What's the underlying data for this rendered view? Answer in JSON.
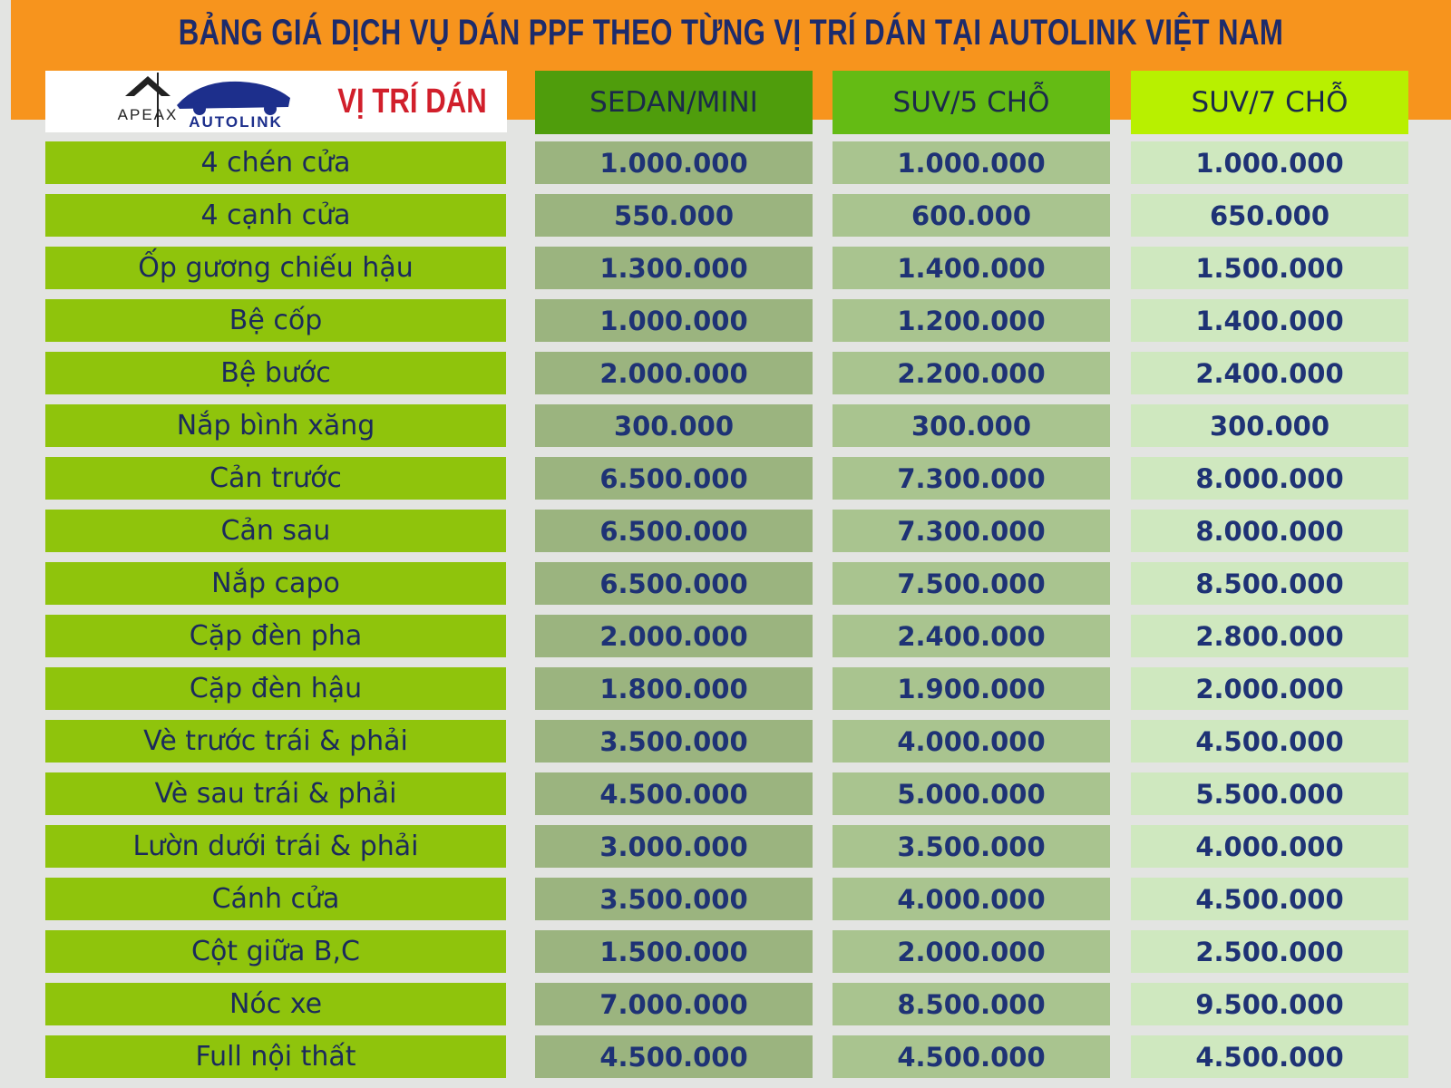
{
  "header": {
    "title": "BẢNG GIÁ DỊCH VỤ DÁN PPF THEO TỪNG VỊ TRÍ DÁN TẠI AUTOLINK VIỆT NAM"
  },
  "logo": {
    "brand1": "APEAX",
    "brand2": "AUTOLINK"
  },
  "table": {
    "columns": [
      "VỊ TRÍ DÁN",
      "SEDAN/MINI",
      "SUV/5 CHỖ",
      "SUV/7 CHỖ"
    ],
    "rows": [
      [
        "4 chén cửa",
        "1.000.000",
        "1.000.000",
        "1.000.000"
      ],
      [
        "4 cạnh cửa",
        "550.000",
        "600.000",
        "650.000"
      ],
      [
        "Ốp gương chiếu hậu",
        "1.300.000",
        "1.400.000",
        "1.500.000"
      ],
      [
        "Bệ cốp",
        "1.000.000",
        "1.200.000",
        "1.400.000"
      ],
      [
        "Bệ bước",
        "2.000.000",
        "2.200.000",
        "2.400.000"
      ],
      [
        "Nắp bình xăng",
        "300.000",
        "300.000",
        "300.000"
      ],
      [
        "Cản trước",
        "6.500.000",
        "7.300.000",
        "8.000.000"
      ],
      [
        "Cản sau",
        "6.500.000",
        "7.300.000",
        "8.000.000"
      ],
      [
        "Nắp capo",
        "6.500.000",
        "7.500.000",
        "8.500.000"
      ],
      [
        "Cặp đèn pha",
        "2.000.000",
        "2.400.000",
        "2.800.000"
      ],
      [
        "Cặp đèn hậu",
        "1.800.000",
        "1.900.000",
        "2.000.000"
      ],
      [
        "Vè trước trái & phải",
        "3.500.000",
        "4.000.000",
        "4.500.000"
      ],
      [
        "Vè sau trái & phải",
        "4.500.000",
        "5.000.000",
        "5.500.000"
      ],
      [
        "Lườn dưới trái & phải",
        "3.000.000",
        "3.500.000",
        "4.000.000"
      ],
      [
        "Cánh cửa",
        "3.500.000",
        "4.000.000",
        "4.500.000"
      ],
      [
        "Cột giữa B,C",
        "1.500.000",
        "2.000.000",
        "2.500.000"
      ],
      [
        "Nóc xe",
        "7.000.000",
        "8.500.000",
        "9.500.000"
      ],
      [
        "Full nội thất",
        "4.500.000",
        "4.500.000",
        "4.500.000"
      ]
    ]
  }
}
